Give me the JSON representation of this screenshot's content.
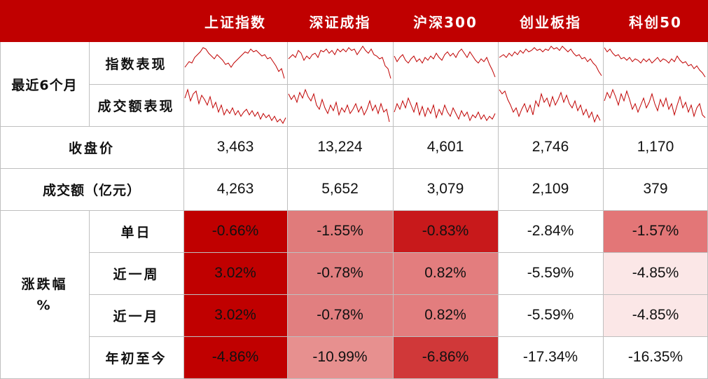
{
  "header": {
    "columns": [
      "上证指数",
      "深证成指",
      "沪深300",
      "创业板指",
      "科创50"
    ]
  },
  "recent": {
    "group_label": "最近6个月",
    "index_label": "指数表现",
    "volume_label": "成交额表现"
  },
  "close": {
    "label": "收盘价",
    "values": [
      "3,463",
      "13,224",
      "4,601",
      "2,746",
      "1,170"
    ]
  },
  "turnover": {
    "label": "成交额（亿元）",
    "values": [
      "4,263",
      "5,652",
      "3,079",
      "2,109",
      "379"
    ]
  },
  "change": {
    "group_label_line1": "涨跌幅",
    "group_label_line2": "%",
    "rows": [
      {
        "label": "单日",
        "values": [
          "-0.66%",
          "-1.55%",
          "-0.83%",
          "-2.84%",
          "-1.57%"
        ],
        "colors": [
          "#c00000",
          "#e07b7b",
          "#c8191b",
          "#ffffff",
          "#e37677"
        ]
      },
      {
        "label": "近一周",
        "values": [
          "3.02%",
          "-0.78%",
          "0.82%",
          "-5.59%",
          "-4.85%"
        ],
        "colors": [
          "#c00000",
          "#e17f80",
          "#e37d7e",
          "#ffffff",
          "#fbe7e7"
        ]
      },
      {
        "label": "近一月",
        "values": [
          "3.02%",
          "-0.78%",
          "0.82%",
          "-5.59%",
          "-4.85%"
        ],
        "colors": [
          "#c00000",
          "#e17f80",
          "#e37d7e",
          "#ffffff",
          "#fbe7e7"
        ]
      },
      {
        "label": "年初至今",
        "values": [
          "-4.86%",
          "-10.99%",
          "-6.86%",
          "-17.34%",
          "-16.35%"
        ],
        "colors": [
          "#c00000",
          "#e7908f",
          "#d03839",
          "#ffffff",
          "#ffffff"
        ]
      }
    ]
  },
  "colors": {
    "header_bg": "#c00000",
    "sparkline": "#c00000",
    "grid": "#bfbfbf"
  }
}
